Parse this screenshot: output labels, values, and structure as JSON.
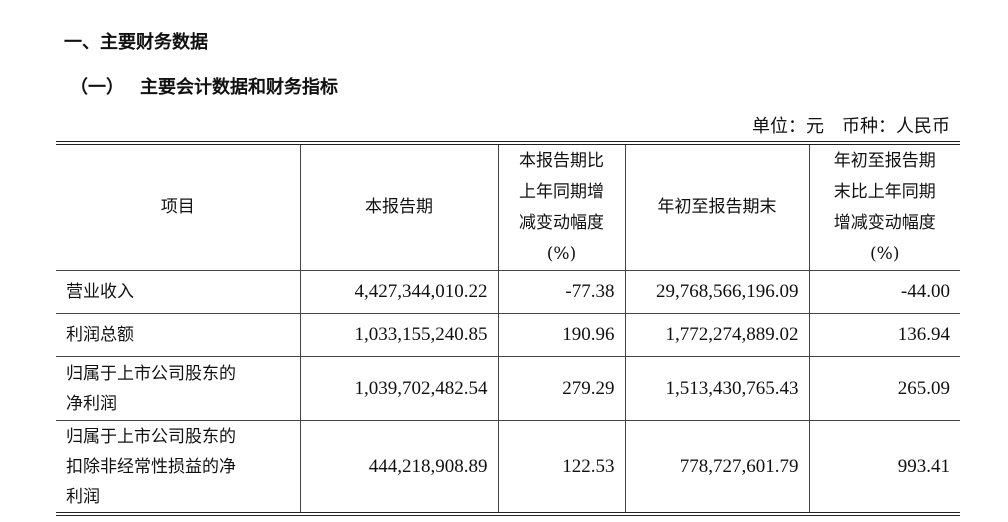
{
  "heading1": "一、主要财务数据",
  "heading2": {
    "number": "（一）",
    "title": "主要会计数据和财务指标"
  },
  "unit": {
    "unit": "单位：元",
    "currency": "币种：人民币"
  },
  "table": {
    "headers": [
      "项目",
      "本报告期",
      "本报告期比上年同期增减变动幅度(%)",
      "年初至报告期末",
      "年初至报告期末比上年同期增减变动幅度(%)"
    ],
    "header_lines": {
      "col2": [
        "本报告期比",
        "上年同期增",
        "减变动幅度",
        "(%)"
      ],
      "col4": [
        "年初至报告期",
        "末比上年同期",
        "增减变动幅度",
        "(%)"
      ]
    },
    "rows": [
      {
        "item": "营业收入",
        "item_lines": [
          "营业收入"
        ],
        "current": "4,427,344,010.22",
        "current_change": "-77.38",
        "ytd": "29,768,566,196.09",
        "ytd_change": "-44.00"
      },
      {
        "item": "利润总额",
        "item_lines": [
          "利润总额"
        ],
        "current": "1,033,155,240.85",
        "current_change": "190.96",
        "ytd": "1,772,274,889.02",
        "ytd_change": "136.94"
      },
      {
        "item": "归属于上市公司股东的净利润",
        "item_lines": [
          "归属于上市公司股东的",
          "净利润"
        ],
        "current": "1,039,702,482.54",
        "current_change": "279.29",
        "ytd": "1,513,430,765.43",
        "ytd_change": "265.09"
      },
      {
        "item": "归属于上市公司股东的扣除非经常性损益的净利润",
        "item_lines": [
          "归属于上市公司股东的",
          "扣除非经常性损益的净",
          "利润"
        ],
        "current": "444,218,908.89",
        "current_change": "122.53",
        "ytd": "778,727,601.79",
        "ytd_change": "993.41"
      }
    ]
  }
}
